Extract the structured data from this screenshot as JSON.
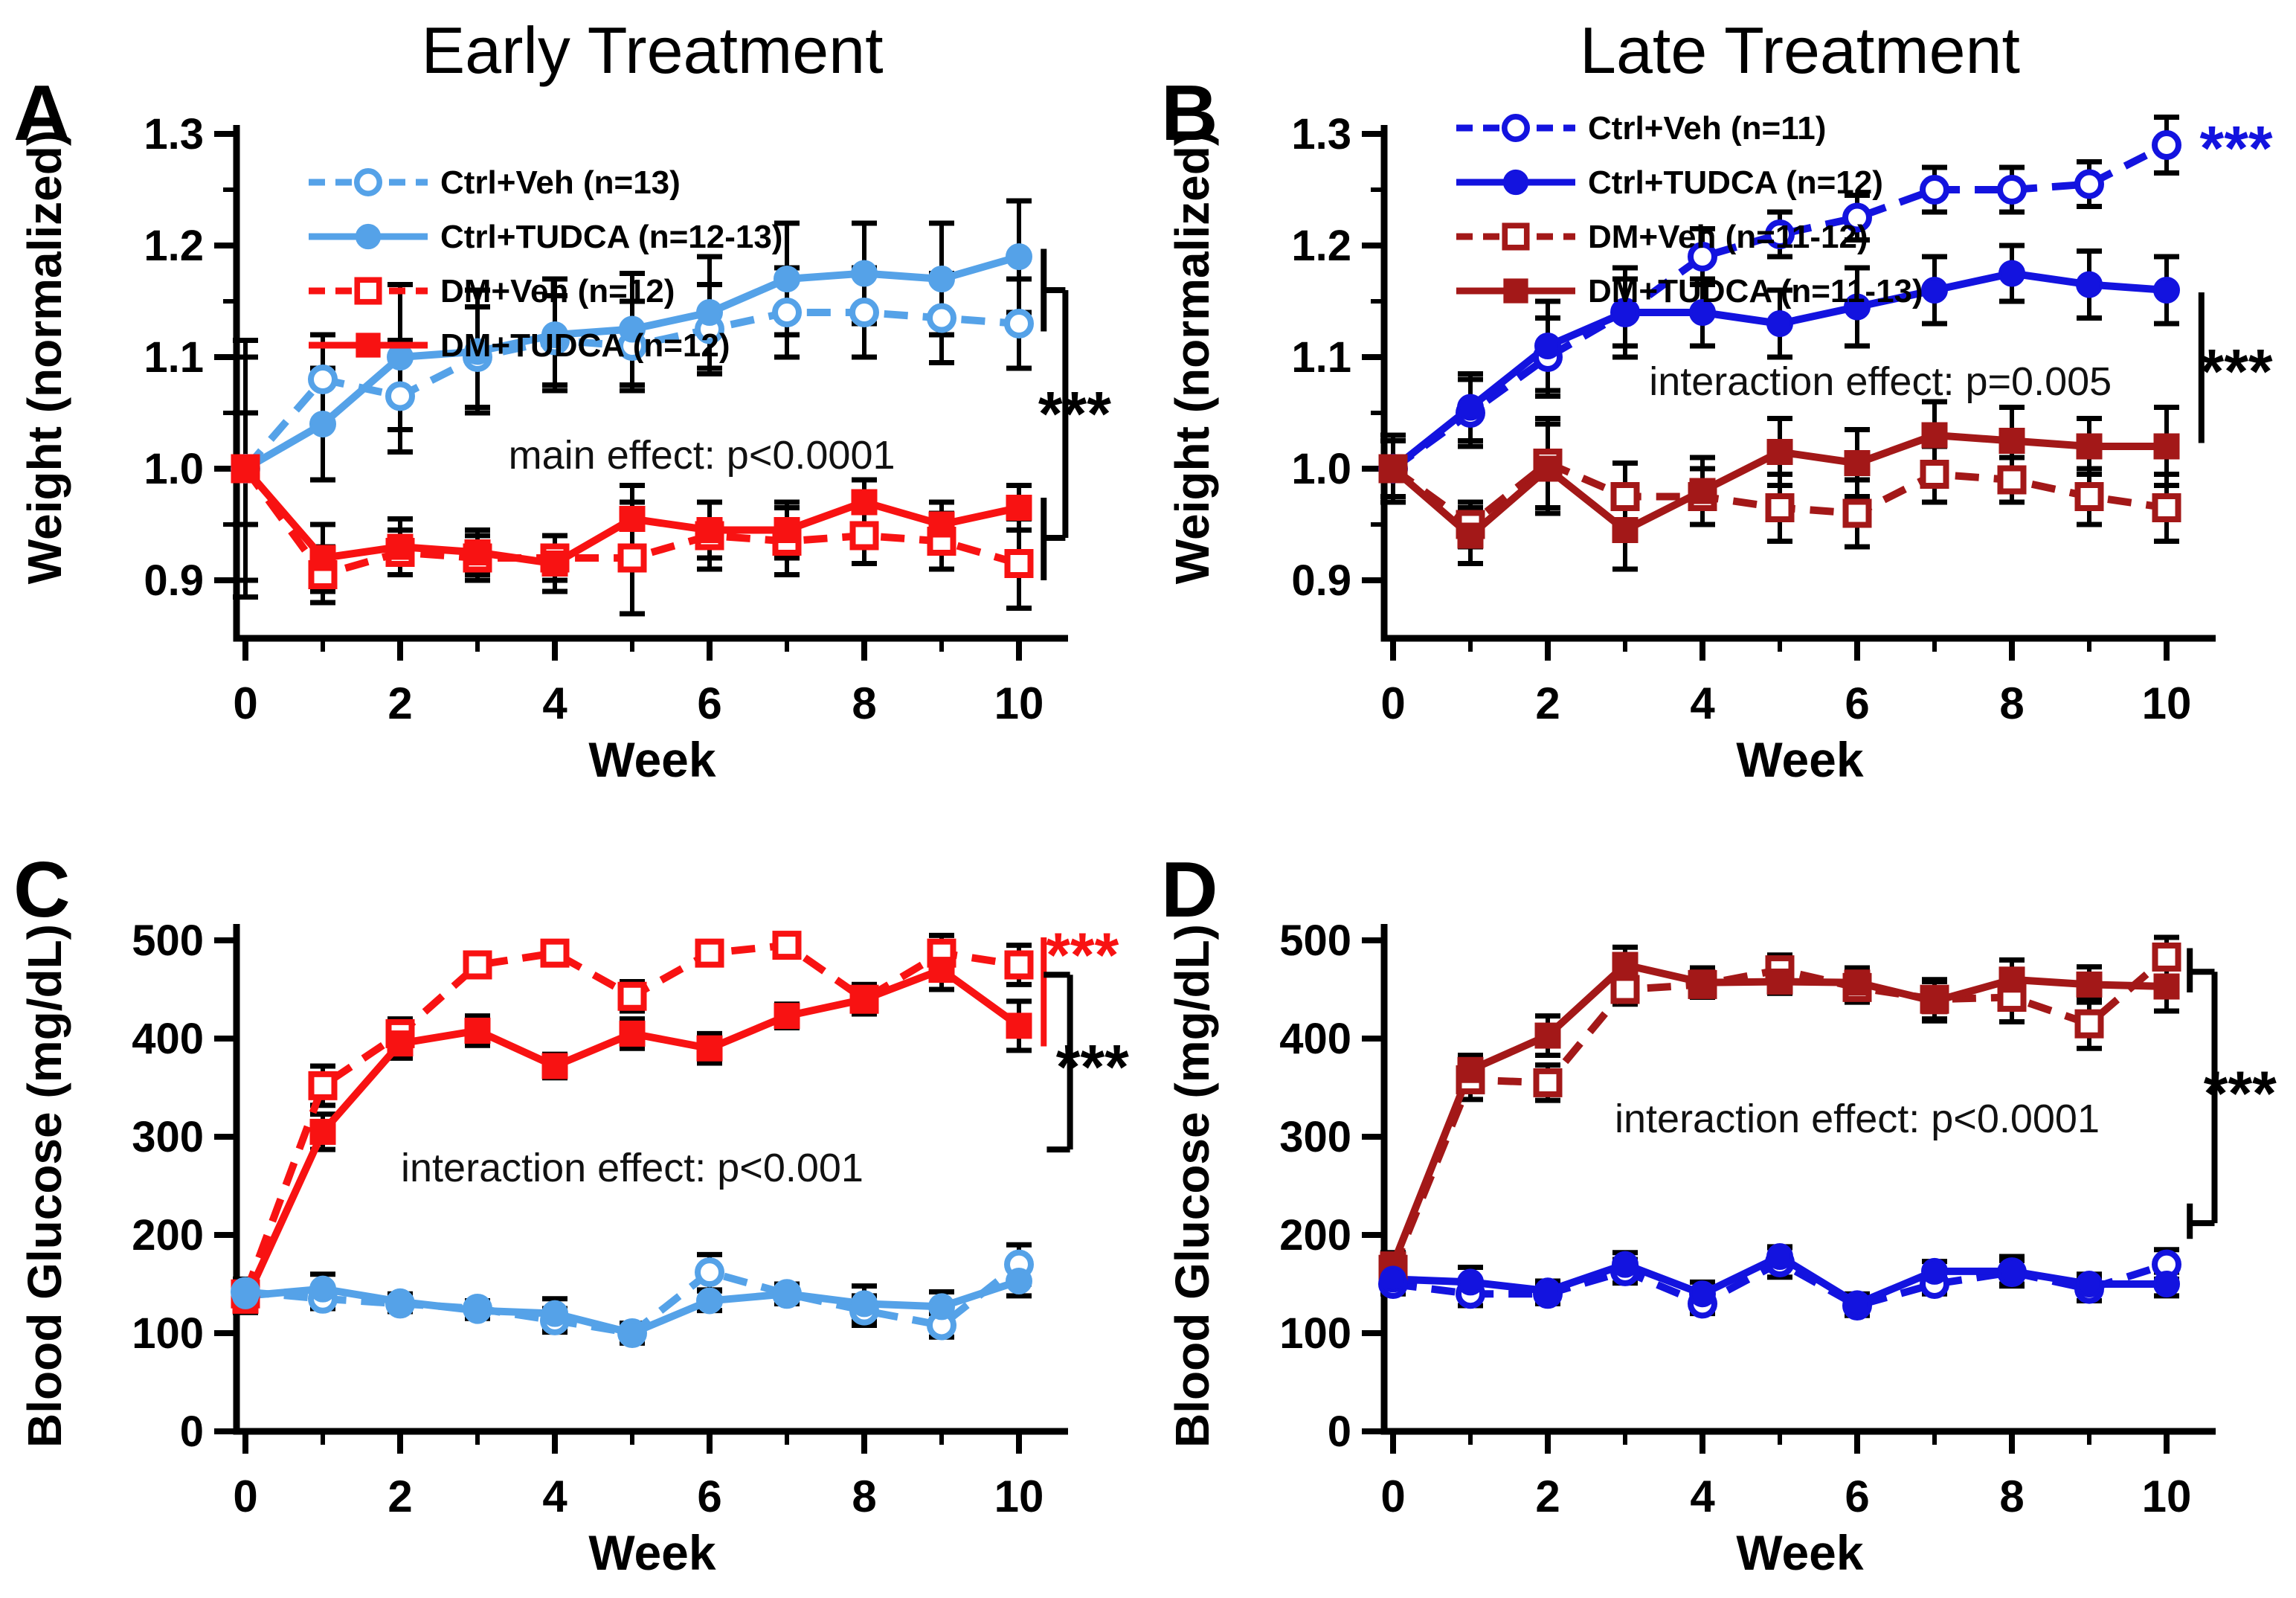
{
  "chart_data": [
    {
      "id": "A",
      "panel_label": "A",
      "title": "Early Treatment",
      "type": "line",
      "kind": "weight",
      "xlabel": "Week",
      "ylabel": "Weight (normalized)",
      "x": [
        0,
        1,
        2,
        3,
        4,
        5,
        6,
        7,
        8,
        9,
        10
      ],
      "xticks": [
        {
          "v": 0,
          "label": "0"
        },
        {
          "v": 2,
          "label": "2"
        },
        {
          "v": 4,
          "label": "4"
        },
        {
          "v": 6,
          "label": "6"
        },
        {
          "v": 8,
          "label": "8"
        },
        {
          "v": 10,
          "label": "10"
        }
      ],
      "xticks_minor": [
        1,
        3,
        5,
        7,
        9
      ],
      "yticks": [
        {
          "v": 0.9,
          "label": "0.9"
        },
        {
          "v": 1.0,
          "label": "1.0"
        },
        {
          "v": 1.1,
          "label": "1.1"
        },
        {
          "v": 1.2,
          "label": "1.2"
        },
        {
          "v": 1.3,
          "label": "1.3"
        }
      ],
      "yticks_minor": [
        0.95,
        1.05,
        1.15,
        1.25
      ],
      "ylim": [
        0.85,
        1.33
      ],
      "legend": {
        "position": "top-left",
        "items": [
          {
            "series": 0
          },
          {
            "series": 1
          },
          {
            "series": 2
          },
          {
            "series": 3
          }
        ]
      },
      "series": [
        {
          "name": "Ctrl+Veh (n=13)",
          "color": "#55A2E8",
          "line": "dashed",
          "marker": "circle",
          "fill": "open",
          "values": [
            1.0,
            1.08,
            1.065,
            1.1,
            1.115,
            1.11,
            1.125,
            1.14,
            1.14,
            1.135,
            1.13
          ],
          "errors": [
            0.115,
            0.04,
            0.05,
            0.045,
            0.04,
            0.04,
            0.04,
            0.04,
            0.04,
            0.04,
            0.04
          ]
        },
        {
          "name": "Ctrl+TUDCA (n=12-13)",
          "color": "#55A2E8",
          "line": "solid",
          "marker": "circle",
          "fill": "filled",
          "values": [
            1.0,
            1.04,
            1.1,
            1.105,
            1.12,
            1.125,
            1.14,
            1.17,
            1.175,
            1.17,
            1.19
          ],
          "errors": [
            0.1,
            0.05,
            0.065,
            0.055,
            0.05,
            0.05,
            0.05,
            0.05,
            0.045,
            0.05,
            0.05
          ]
        },
        {
          "name": "DM+Veh (n=12)",
          "color": "#F81212",
          "line": "dashed",
          "marker": "square",
          "fill": "open",
          "values": [
            1.0,
            0.905,
            0.925,
            0.92,
            0.92,
            0.92,
            0.94,
            0.935,
            0.94,
            0.935,
            0.915
          ],
          "errors": [
            0.05,
            0.025,
            0.02,
            0.02,
            0.02,
            0.05,
            0.03,
            0.03,
            0.025,
            0.025,
            0.04
          ]
        },
        {
          "name": "DM+TUDCA (n=12)",
          "color": "#F81212",
          "line": "solid",
          "marker": "square",
          "fill": "filled",
          "values": [
            1.0,
            0.92,
            0.93,
            0.925,
            0.915,
            0.955,
            0.945,
            0.945,
            0.97,
            0.95,
            0.965
          ],
          "errors": [
            0.05,
            0.03,
            0.025,
            0.02,
            0.025,
            0.03,
            0.025,
            0.025,
            0.02,
            0.02,
            0.02
          ]
        }
      ],
      "annotation": {
        "text": "main effect: p<0.0001",
        "x": 5.9,
        "y": 1.012
      },
      "significance": {
        "stars": [
          {
            "text": "***",
            "x": 10.72,
            "y": 1.05,
            "color": "#000000"
          }
        ],
        "brackets": [
          {
            "color": "#000000",
            "segments": [
              [
                10.32,
                1.197,
                10.32,
                1.123
              ],
              [
                10.32,
                1.16,
                10.6,
                1.16
              ],
              [
                10.6,
                1.16,
                10.6,
                0.938
              ],
              [
                10.6,
                0.938,
                10.32,
                0.938
              ],
              [
                10.32,
                0.974,
                10.32,
                0.9
              ]
            ]
          }
        ]
      }
    },
    {
      "id": "B",
      "panel_label": "B",
      "title": "Late Treatment",
      "type": "line",
      "kind": "weight",
      "xlabel": "Week",
      "ylabel": "Weight (normalized)",
      "x": [
        0,
        1,
        2,
        3,
        4,
        5,
        6,
        7,
        8,
        9,
        10
      ],
      "xticks": [
        {
          "v": 0,
          "label": "0"
        },
        {
          "v": 2,
          "label": "2"
        },
        {
          "v": 4,
          "label": "4"
        },
        {
          "v": 6,
          "label": "6"
        },
        {
          "v": 8,
          "label": "8"
        },
        {
          "v": 10,
          "label": "10"
        }
      ],
      "xticks_minor": [
        1,
        3,
        5,
        7,
        9
      ],
      "yticks": [
        {
          "v": 0.9,
          "label": "0.9"
        },
        {
          "v": 1.0,
          "label": "1.0"
        },
        {
          "v": 1.1,
          "label": "1.1"
        },
        {
          "v": 1.2,
          "label": "1.2"
        },
        {
          "v": 1.3,
          "label": "1.3"
        }
      ],
      "yticks_minor": [
        0.95,
        1.05,
        1.15,
        1.25
      ],
      "ylim": [
        0.85,
        1.33
      ],
      "legend": {
        "position": "top-left",
        "items": [
          {
            "series": 0
          },
          {
            "series": 1
          },
          {
            "series": 2
          },
          {
            "series": 3
          }
        ]
      },
      "series": [
        {
          "name": "Ctrl+Veh (n=11)",
          "color": "#1313DF",
          "line": "dashed",
          "marker": "circle",
          "fill": "open",
          "values": [
            1.0,
            1.05,
            1.1,
            1.14,
            1.19,
            1.21,
            1.225,
            1.25,
            1.25,
            1.255,
            1.29
          ],
          "errors": [
            0.03,
            0.03,
            0.035,
            0.03,
            0.025,
            0.02,
            0.02,
            0.02,
            0.02,
            0.02,
            0.025
          ]
        },
        {
          "name": "Ctrl+TUDCA (n=12)",
          "color": "#1313DF",
          "line": "solid",
          "marker": "circle",
          "fill": "filled",
          "values": [
            1.0,
            1.055,
            1.11,
            1.14,
            1.14,
            1.13,
            1.145,
            1.16,
            1.175,
            1.165,
            1.16
          ],
          "errors": [
            0.025,
            0.03,
            0.04,
            0.04,
            0.03,
            0.03,
            0.035,
            0.03,
            0.025,
            0.03,
            0.03
          ]
        },
        {
          "name": "DM+Veh (n=11-12)",
          "color": "#A31818",
          "line": "dashed",
          "marker": "square",
          "fill": "open",
          "values": [
            1.0,
            0.95,
            1.005,
            0.975,
            0.975,
            0.965,
            0.96,
            0.995,
            0.99,
            0.975,
            0.965
          ],
          "errors": [
            0.03,
            0.02,
            0.04,
            0.03,
            0.025,
            0.03,
            0.03,
            0.025,
            0.02,
            0.025,
            0.03
          ]
        },
        {
          "name": "DM+TUDCA (n=11-13)",
          "color": "#A31818",
          "line": "solid",
          "marker": "square",
          "fill": "filled",
          "values": [
            1.0,
            0.94,
            1.0,
            0.945,
            0.98,
            1.015,
            1.005,
            1.03,
            1.025,
            1.02,
            1.02
          ],
          "errors": [
            0.03,
            0.025,
            0.04,
            0.035,
            0.03,
            0.03,
            0.03,
            0.03,
            0.03,
            0.025,
            0.035
          ]
        }
      ],
      "annotation": {
        "text": "interaction effect: p=0.005",
        "x": 6.3,
        "y": 1.078
      },
      "significance": {
        "stars": [
          {
            "text": "***",
            "x": 10.9,
            "y": 1.288,
            "color": "#1313DF"
          },
          {
            "text": "***",
            "x": 10.9,
            "y": 1.088,
            "color": "#000000"
          }
        ],
        "brackets": [
          {
            "color": "#000000",
            "segments": [
              [
                10.45,
                1.158,
                10.45,
                1.023
              ]
            ]
          }
        ]
      }
    },
    {
      "id": "C",
      "panel_label": "C",
      "title": null,
      "type": "line",
      "kind": "glucose",
      "xlabel": "Week",
      "ylabel": "Blood Glucose (mg/dL)",
      "x": [
        0,
        1,
        2,
        3,
        4,
        5,
        6,
        7,
        8,
        9,
        10
      ],
      "xticks": [
        {
          "v": 0,
          "label": "0"
        },
        {
          "v": 2,
          "label": "2"
        },
        {
          "v": 4,
          "label": "4"
        },
        {
          "v": 6,
          "label": "6"
        },
        {
          "v": 8,
          "label": "8"
        },
        {
          "v": 10,
          "label": "10"
        }
      ],
      "xticks_minor": [
        1,
        3,
        5,
        7,
        9
      ],
      "yticks": [
        {
          "v": 0,
          "label": "0"
        },
        {
          "v": 100,
          "label": "100"
        },
        {
          "v": 200,
          "label": "200"
        },
        {
          "v": 300,
          "label": "300"
        },
        {
          "v": 400,
          "label": "400"
        },
        {
          "v": 500,
          "label": "500"
        }
      ],
      "yticks_minor": [],
      "ylim": [
        0,
        520
      ],
      "legend": null,
      "series": [
        {
          "name": "DM+Veh",
          "color": "#F81212",
          "line": "dashed",
          "marker": "square",
          "fill": "open",
          "values": [
            140,
            352,
            405,
            475,
            487,
            443,
            487,
            495,
            440,
            487,
            475
          ],
          "errors": [
            15,
            20,
            15,
            12,
            10,
            15,
            10,
            8,
            15,
            18,
            20
          ]
        },
        {
          "name": "DM+TUDCA",
          "color": "#F81212",
          "line": "solid",
          "marker": "square",
          "fill": "filled",
          "values": [
            133,
            305,
            395,
            408,
            372,
            405,
            390,
            423,
            440,
            470,
            413
          ],
          "errors": [
            12,
            18,
            15,
            15,
            12,
            15,
            15,
            12,
            15,
            20,
            25
          ]
        },
        {
          "name": "Ctrl+Veh",
          "color": "#55A2E8",
          "line": "dashed",
          "marker": "circle",
          "fill": "open",
          "values": [
            142,
            135,
            130,
            125,
            113,
            100,
            162,
            140,
            123,
            108,
            170
          ],
          "errors": [
            12,
            10,
            8,
            8,
            12,
            10,
            18,
            10,
            15,
            12,
            20
          ]
        },
        {
          "name": "Ctrl+TUDCA",
          "color": "#55A2E8",
          "line": "solid",
          "marker": "circle",
          "fill": "filled",
          "values": [
            138,
            145,
            132,
            123,
            120,
            100,
            133,
            140,
            130,
            127,
            153
          ],
          "errors": [
            12,
            15,
            8,
            8,
            15,
            10,
            10,
            10,
            18,
            15,
            15
          ]
        }
      ],
      "annotation": {
        "text": "interaction effect: p<0.001",
        "x": 5.0,
        "y": 268
      },
      "significance": {
        "stars": [
          {
            "text": "***",
            "x": 10.82,
            "y": 486,
            "color": "#F81212"
          },
          {
            "text": "***",
            "x": 10.95,
            "y": 372,
            "color": "#000000"
          }
        ],
        "brackets": [
          {
            "color": "#F81212",
            "segments": [
              [
                10.32,
                503,
                10.32,
                392
              ]
            ]
          },
          {
            "color": "#000000",
            "segments": [
              [
                10.32,
                465,
                10.66,
                465
              ],
              [
                10.66,
                465,
                10.66,
                287
              ],
              [
                10.66,
                287,
                10.36,
                287
              ]
            ]
          }
        ]
      }
    },
    {
      "id": "D",
      "panel_label": "D",
      "title": null,
      "type": "line",
      "kind": "glucose",
      "xlabel": "Week",
      "ylabel": "Blood Glucose (mg/dL)",
      "x": [
        0,
        1,
        2,
        3,
        4,
        5,
        6,
        7,
        8,
        9,
        10
      ],
      "xticks": [
        {
          "v": 0,
          "label": "0"
        },
        {
          "v": 2,
          "label": "2"
        },
        {
          "v": 4,
          "label": "4"
        },
        {
          "v": 6,
          "label": "6"
        },
        {
          "v": 8,
          "label": "8"
        },
        {
          "v": 10,
          "label": "10"
        }
      ],
      "xticks_minor": [
        1,
        3,
        5,
        7,
        9
      ],
      "yticks": [
        {
          "v": 0,
          "label": "0"
        },
        {
          "v": 100,
          "label": "100"
        },
        {
          "v": 200,
          "label": "200"
        },
        {
          "v": 300,
          "label": "300"
        },
        {
          "v": 400,
          "label": "400"
        },
        {
          "v": 500,
          "label": "500"
        }
      ],
      "yticks_minor": [],
      "ylim": [
        0,
        520
      ],
      "legend": null,
      "series": [
        {
          "name": "DM+Veh",
          "color": "#A31818",
          "line": "dashed",
          "marker": "square",
          "fill": "open",
          "values": [
            165,
            358,
            355,
            450,
            455,
            470,
            452,
            440,
            442,
            415,
            483
          ],
          "errors": [
            12,
            20,
            18,
            15,
            12,
            15,
            15,
            20,
            25,
            25,
            20
          ]
        },
        {
          "name": "DM+TUDCA",
          "color": "#A31818",
          "line": "solid",
          "marker": "square",
          "fill": "filled",
          "values": [
            170,
            368,
            403,
            475,
            457,
            458,
            457,
            438,
            460,
            455,
            453
          ],
          "errors": [
            12,
            15,
            20,
            18,
            15,
            12,
            15,
            20,
            20,
            18,
            25
          ]
        },
        {
          "name": "Ctrl+Veh",
          "color": "#1313DF",
          "line": "dashed",
          "marker": "circle",
          "fill": "open",
          "values": [
            150,
            140,
            140,
            163,
            130,
            172,
            128,
            150,
            162,
            145,
            170
          ],
          "errors": [
            10,
            12,
            10,
            12,
            10,
            15,
            10,
            10,
            12,
            12,
            15
          ]
        },
        {
          "name": "Ctrl+TUDCA",
          "color": "#1313DF",
          "line": "solid",
          "marker": "circle",
          "fill": "filled",
          "values": [
            155,
            152,
            143,
            170,
            140,
            178,
            130,
            163,
            163,
            150,
            150
          ],
          "errors": [
            10,
            15,
            10,
            12,
            12,
            10,
            10,
            10,
            15,
            10,
            12
          ]
        }
      ],
      "annotation": {
        "text": "interaction effect: p<0.0001",
        "x": 6.0,
        "y": 318
      },
      "significance": {
        "stars": [
          {
            "text": "***",
            "x": 10.95,
            "y": 345,
            "color": "#000000"
          }
        ],
        "brackets": [
          {
            "color": "#000000",
            "segments": [
              [
                10.3,
                492,
                10.3,
                447
              ],
              [
                10.3,
                468,
                10.62,
                468
              ],
              [
                10.62,
                468,
                10.62,
                212
              ],
              [
                10.62,
                212,
                10.3,
                212
              ],
              [
                10.3,
                232,
                10.3,
                196
              ]
            ]
          }
        ]
      }
    }
  ]
}
